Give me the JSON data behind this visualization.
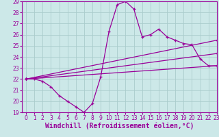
{
  "title": "",
  "xlabel": "Windchill (Refroidissement éolien,°C)",
  "ylabel": "",
  "xlim": [
    -0.5,
    23
  ],
  "ylim": [
    19,
    29
  ],
  "yticks": [
    19,
    20,
    21,
    22,
    23,
    24,
    25,
    26,
    27,
    28,
    29
  ],
  "xticks": [
    0,
    1,
    2,
    3,
    4,
    5,
    6,
    7,
    8,
    9,
    10,
    11,
    12,
    13,
    14,
    15,
    16,
    17,
    18,
    19,
    20,
    21,
    22,
    23
  ],
  "bg_color": "#cce8e8",
  "grid_color": "#aacccc",
  "line_color": "#990099",
  "line1_x": [
    0,
    1,
    2,
    3,
    4,
    5,
    6,
    7,
    8,
    9,
    10,
    11,
    12,
    13,
    14,
    15,
    16,
    17,
    18,
    19,
    20,
    21,
    22,
    23
  ],
  "line1_y": [
    22.0,
    22.0,
    21.8,
    21.3,
    20.5,
    20.0,
    19.5,
    19.0,
    19.8,
    22.2,
    26.3,
    28.7,
    29.0,
    28.3,
    25.8,
    26.0,
    26.5,
    25.8,
    25.5,
    25.2,
    25.1,
    23.8,
    23.2,
    23.2
  ],
  "line2_x": [
    0,
    23
  ],
  "line2_y": [
    22.0,
    25.5
  ],
  "line3_x": [
    0,
    23
  ],
  "line3_y": [
    22.0,
    24.3
  ],
  "line4_x": [
    0,
    23
  ],
  "line4_y": [
    22.0,
    23.2
  ],
  "tick_fontsize": 5.5,
  "xlabel_fontsize": 7
}
